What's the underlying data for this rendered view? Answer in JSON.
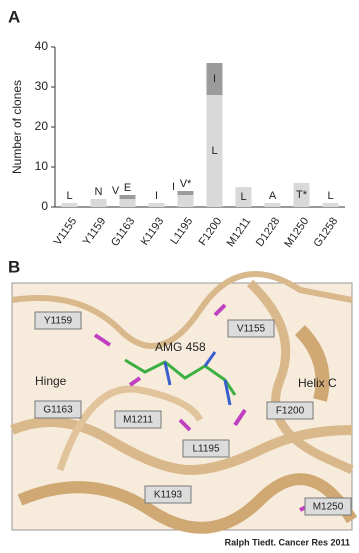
{
  "chart_data": {
    "type": "bar",
    "stacked": true,
    "panel": "A",
    "ylabel": "Number of clones",
    "categories": [
      "V1155",
      "Y1159",
      "G1163",
      "K1193",
      "L1195",
      "F1200",
      "M1211",
      "D1228",
      "M1250",
      "G1258"
    ],
    "series": [
      {
        "color": "#d9d9d9",
        "values": [
          1,
          2,
          2,
          1,
          3,
          28,
          5,
          1,
          6,
          1
        ],
        "segment_labels": [
          "L",
          "N",
          "V",
          "I",
          "I",
          "L",
          "L",
          "A",
          "T*",
          "L"
        ]
      },
      {
        "color": "#9b9b9b",
        "values": [
          0,
          0,
          1,
          0,
          1,
          8,
          0,
          0,
          0,
          0
        ],
        "segment_labels": [
          null,
          null,
          "E",
          null,
          "V*",
          "I",
          null,
          null,
          null,
          null
        ]
      }
    ],
    "ylim": [
      0,
      40
    ],
    "yticks": [
      0,
      10,
      20,
      30,
      40
    ]
  },
  "panel_b": {
    "panel": "B",
    "labels": [
      "Y1159",
      "V1155",
      "G1163",
      "M1211",
      "F1200",
      "L1195",
      "K1193",
      "M1250"
    ],
    "annotations": [
      "AMG 458",
      "Hinge",
      "Helix C"
    ],
    "credit": "Ralph Tiedt. Cancer Res 2011"
  }
}
